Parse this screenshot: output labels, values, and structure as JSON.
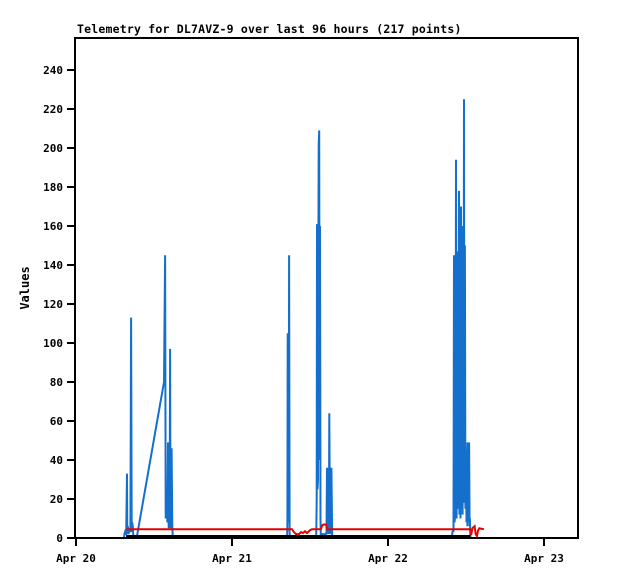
{
  "page": {
    "background": "#ffffff"
  },
  "chart_data": {
    "type": "line",
    "title": "Telemetry for DL7AVZ-9 over last 96 hours (217 points)",
    "ylabel": "Values",
    "xlabel": "",
    "x_tick_labels": [
      "Apr 20",
      "Apr 21",
      "Apr 22",
      "Apr 23"
    ],
    "y_ticks": [
      0,
      20,
      40,
      60,
      80,
      100,
      120,
      140,
      160,
      180,
      200,
      220,
      240
    ],
    "x_unit": "days since Apr 20 00:00",
    "xlim_days": [
      0,
      3.22
    ],
    "ylim": [
      0,
      256
    ],
    "grid": false,
    "legend_position": "none",
    "axis_color": "#000000",
    "series": [
      {
        "name": "telemetry-channel-blue",
        "color": "#1470CC",
        "stroke_width": 2,
        "points": [
          [
            0.308,
            0
          ],
          [
            0.31,
            2
          ],
          [
            0.314,
            3
          ],
          [
            0.318,
            2
          ],
          [
            0.322,
            2
          ],
          [
            0.327,
            33
          ],
          [
            0.329,
            2
          ],
          [
            0.333,
            6
          ],
          [
            0.337,
            2
          ],
          [
            0.341,
            5
          ],
          [
            0.345,
            3
          ],
          [
            0.349,
            4
          ],
          [
            0.353,
            113
          ],
          [
            0.357,
            3
          ],
          [
            0.36,
            8
          ],
          [
            0.364,
            6
          ],
          [
            0.368,
            0
          ],
          [
            0.391,
            1
          ],
          [
            0.564,
            80
          ],
          [
            0.571,
            145
          ],
          [
            0.575,
            10
          ],
          [
            0.579,
            12
          ],
          [
            0.583,
            14
          ],
          [
            0.586,
            8
          ],
          [
            0.59,
            49
          ],
          [
            0.594,
            5
          ],
          [
            0.597,
            44
          ],
          [
            0.6,
            5
          ],
          [
            0.603,
            97
          ],
          [
            0.606,
            5
          ],
          [
            0.608,
            44
          ],
          [
            0.611,
            5
          ],
          [
            0.613,
            46
          ],
          [
            0.617,
            5
          ],
          [
            0.621,
            0
          ],
          [
            1.353,
            0
          ],
          [
            1.355,
            8
          ],
          [
            1.357,
            105
          ],
          [
            1.36,
            8
          ],
          [
            1.364,
            60
          ],
          [
            1.366,
            145
          ],
          [
            1.369,
            3
          ],
          [
            1.371,
            0
          ],
          [
            1.54,
            0
          ],
          [
            1.543,
            20
          ],
          [
            1.545,
            161
          ],
          [
            1.548,
            25
          ],
          [
            1.551,
            30
          ],
          [
            1.554,
            150
          ],
          [
            1.556,
            202
          ],
          [
            1.559,
            209
          ],
          [
            1.562,
            40
          ],
          [
            1.564,
            160
          ],
          [
            1.567,
            10
          ],
          [
            1.569,
            0
          ],
          [
            1.58,
            2
          ],
          [
            1.602,
            2
          ],
          [
            1.606,
            3
          ],
          [
            1.609,
            36
          ],
          [
            1.613,
            2
          ],
          [
            1.618,
            36
          ],
          [
            1.621,
            2
          ],
          [
            1.624,
            64
          ],
          [
            1.628,
            2
          ],
          [
            1.63,
            36
          ],
          [
            1.634,
            2
          ],
          [
            1.637,
            36
          ],
          [
            1.642,
            0
          ],
          [
            2.41,
            0
          ],
          [
            2.413,
            3
          ],
          [
            2.417,
            4
          ],
          [
            2.42,
            3
          ],
          [
            2.423,
            145
          ],
          [
            2.426,
            8
          ],
          [
            2.429,
            10
          ],
          [
            2.433,
            12
          ],
          [
            2.436,
            194
          ],
          [
            2.44,
            10
          ],
          [
            2.443,
            147
          ],
          [
            2.446,
            15
          ],
          [
            2.449,
            20
          ],
          [
            2.452,
            18
          ],
          [
            2.455,
            178
          ],
          [
            2.458,
            12
          ],
          [
            2.462,
            155
          ],
          [
            2.465,
            10
          ],
          [
            2.468,
            170
          ],
          [
            2.471,
            15
          ],
          [
            2.475,
            160
          ],
          [
            2.478,
            12
          ],
          [
            2.481,
            150
          ],
          [
            2.484,
            20
          ],
          [
            2.487,
            225
          ],
          [
            2.49,
            18
          ],
          [
            2.493,
            150
          ],
          [
            2.496,
            15
          ],
          [
            2.499,
            49
          ],
          [
            2.503,
            8
          ],
          [
            2.506,
            45
          ],
          [
            2.509,
            6
          ],
          [
            2.513,
            49
          ],
          [
            2.516,
            8
          ],
          [
            2.52,
            49
          ],
          [
            2.523,
            6
          ],
          [
            2.525,
            10
          ],
          [
            2.528,
            0
          ]
        ]
      },
      {
        "name": "telemetry-channel-black",
        "color": "#000000",
        "stroke_width": 2,
        "points": [
          [
            0.321,
            1
          ],
          [
            2.528,
            1
          ]
        ]
      },
      {
        "name": "telemetry-channel-red",
        "color": "#E60000",
        "stroke_width": 2,
        "points": [
          [
            0.321,
            4.5
          ],
          [
            1.385,
            4.5
          ],
          [
            1.397,
            3
          ],
          [
            1.41,
            2
          ],
          [
            1.43,
            2
          ],
          [
            1.442,
            3
          ],
          [
            1.455,
            2.5
          ],
          [
            1.468,
            3.5
          ],
          [
            1.481,
            2.5
          ],
          [
            1.5,
            4
          ],
          [
            1.513,
            4.5
          ],
          [
            1.57,
            4.5
          ],
          [
            1.578,
            6.5
          ],
          [
            1.59,
            7
          ],
          [
            1.603,
            6.8
          ],
          [
            1.61,
            4.5
          ],
          [
            2.4,
            4.5
          ],
          [
            2.526,
            4.5
          ],
          [
            2.533,
            1.5
          ],
          [
            2.541,
            5
          ],
          [
            2.548,
            5.5
          ],
          [
            2.555,
            6
          ],
          [
            2.562,
            2
          ],
          [
            2.57,
            1
          ],
          [
            2.578,
            4
          ],
          [
            2.585,
            5
          ],
          [
            2.595,
            4.8
          ],
          [
            2.615,
            4.5
          ]
        ]
      }
    ]
  }
}
